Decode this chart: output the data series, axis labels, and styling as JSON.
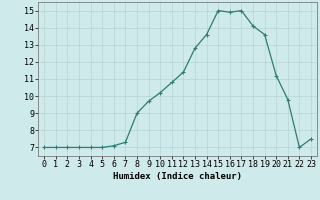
{
  "x": [
    0,
    1,
    2,
    3,
    4,
    5,
    6,
    7,
    8,
    9,
    10,
    11,
    12,
    13,
    14,
    15,
    16,
    17,
    18,
    19,
    20,
    21,
    22,
    23
  ],
  "y": [
    7,
    7,
    7,
    7,
    7,
    7,
    7.1,
    7.3,
    9.0,
    9.7,
    10.2,
    10.8,
    11.4,
    12.8,
    13.6,
    15.0,
    14.9,
    15.0,
    14.1,
    13.6,
    11.2,
    9.8,
    7.0,
    7.5
  ],
  "line_color": "#2e7d6e",
  "marker": "+",
  "marker_size": 3,
  "marker_linewidth": 0.8,
  "linewidth": 0.9,
  "background_color": "#ceeaea",
  "grid_color": "#b8d4d4",
  "xlabel": "Humidex (Indice chaleur)",
  "xlim": [
    -0.5,
    23.5
  ],
  "ylim": [
    6.5,
    15.5
  ],
  "xticks": [
    0,
    1,
    2,
    3,
    4,
    5,
    6,
    7,
    8,
    9,
    10,
    11,
    12,
    13,
    14,
    15,
    16,
    17,
    18,
    19,
    20,
    21,
    22,
    23
  ],
  "yticks": [
    7,
    8,
    9,
    10,
    11,
    12,
    13,
    14,
    15
  ],
  "xlabel_fontsize": 6.5,
  "tick_fontsize": 6
}
